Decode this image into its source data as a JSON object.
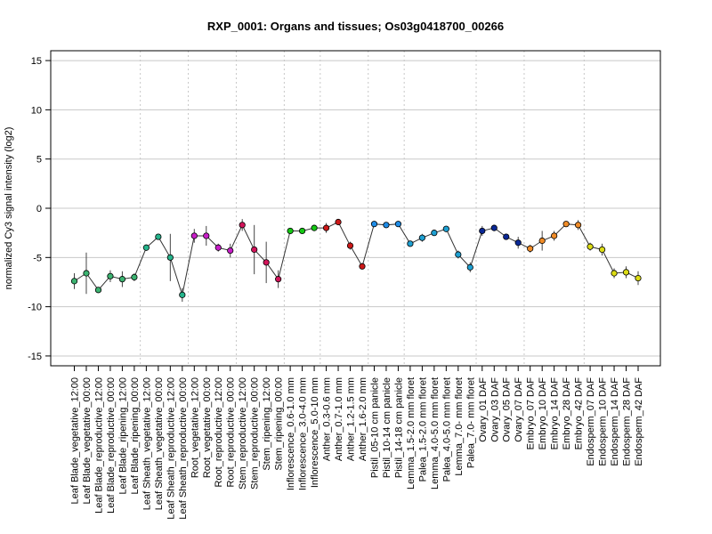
{
  "chart_data": {
    "type": "line",
    "title": "RXP_0001: Organs and tissues; Os03g0418700_00266",
    "xlabel": "",
    "ylabel": "normalized Cy3 signal intensity (log2)",
    "ylim": [
      -16,
      16
    ],
    "yticks": [
      -15,
      -10,
      -5,
      0,
      5,
      10,
      15
    ],
    "grid": true,
    "categories": [
      "Leaf Blade_vegetative_12:00",
      "Leaf Blade_vegetative_00:00",
      "Leaf Blade_reproductive_12:00",
      "Leaf Blade_reproductive_00:00",
      "Leaf Blade_ripening_12:00",
      "Leaf Blade_ripening_00:00",
      "Leaf Sheath_vegetative_12:00",
      "Leaf Sheath_vegetative_00:00",
      "Leaf Sheath_reproductive_12:00",
      "Leaf Sheath_reproductive_00:00",
      "Root_vegetative_12:00",
      "Root_vegetative_00:00",
      "Root_reproductive_12:00",
      "Root_reproductive_00:00",
      "Stem_reproductive_12:00",
      "Stem_reproductive_00:00",
      "Stem_ripening_12:00",
      "Stem_ripening_00:00",
      "Inflorescence_0.6-1.0 mm",
      "Inflorescence_3.0-4.0 mm",
      "Inflorescence_5.0-10 mm",
      "Anther_0.3-0.6 mm",
      "Anther_0.7-1.0 mm",
      "Anther_1.2-1.5 mm",
      "Anther_1.6-2.0 mm",
      "Pistil_05-10 cm panicle",
      "Pistil_10-14 cm panicle",
      "Pistil_14-18 cm panicle",
      "Lemma_1.5-2.0 mm floret",
      "Palea_1.5-2.0 mm floret",
      "Lemma_4.0-5.0 mm floret",
      "Palea_4.0-5.0 mm floret",
      "Lemma_7.0- mm floret",
      "Palea_7.0- mm floret",
      "Ovary_01 DAF",
      "Ovary_03 DAF",
      "Ovary_05 DAF",
      "Ovary_07 DAF",
      "Embryo_07 DAF",
      "Embryo_10 DAF",
      "Embryo_14 DAF",
      "Embryo_28 DAF",
      "Embryo_42 DAF",
      "Endosperm_07 DAF",
      "Endosperm_10 DAF",
      "Endosperm_14 DAF",
      "Endosperm_28 DAF",
      "Endosperm_42 DAF"
    ],
    "values": [
      -7.4,
      -6.6,
      -8.3,
      -6.9,
      -7.2,
      -7.0,
      -4.0,
      -2.9,
      -5.0,
      -8.8,
      -2.8,
      -2.8,
      -4.0,
      -4.3,
      -1.7,
      -4.2,
      -5.5,
      -7.2,
      -2.3,
      -2.3,
      -2.0,
      -2.0,
      -1.4,
      -3.8,
      -5.9,
      -1.6,
      -1.7,
      -1.6,
      -3.6,
      -3.0,
      -2.5,
      -2.1,
      -4.7,
      -6.0,
      -2.3,
      -2.0,
      -2.9,
      -3.5,
      -4.1,
      -3.3,
      -2.8,
      -1.6,
      -1.7,
      -3.9,
      -4.2,
      -6.6,
      -6.5,
      -7.1
    ],
    "errors": [
      0.8,
      2.1,
      0.3,
      0.6,
      0.8,
      0.4,
      0.3,
      0.2,
      2.4,
      0.7,
      0.7,
      1.0,
      0.4,
      0.7,
      0.6,
      2.5,
      2.1,
      0.9,
      0.3,
      0.2,
      0.2,
      0.5,
      0.3,
      0.4,
      0.3,
      0.3,
      0.3,
      0.3,
      0.3,
      0.4,
      0.3,
      0.3,
      0.4,
      0.5,
      0.5,
      0.3,
      0.3,
      0.6,
      0.4,
      1.0,
      0.5,
      0.2,
      0.5,
      0.4,
      0.6,
      0.5,
      0.6,
      0.7
    ],
    "colors": [
      "#3cb371",
      "#3cb371",
      "#3cb371",
      "#3cb371",
      "#3cb371",
      "#3cb371",
      "#26b48c",
      "#26b48c",
      "#26b48c",
      "#26b48c",
      "#c81ec8",
      "#c81ec8",
      "#c81ec8",
      "#c81ec8",
      "#d2145a",
      "#d2145a",
      "#d2145a",
      "#d2145a",
      "#14c814",
      "#14c814",
      "#14c814",
      "#cc1818",
      "#cc1818",
      "#cc1818",
      "#cc1818",
      "#1e8ce6",
      "#1e8ce6",
      "#1e8ce6",
      "#1ea0d2",
      "#1ea0d2",
      "#1ea0d2",
      "#1ea0d2",
      "#1ea0d2",
      "#1ea0d2",
      "#0a2896",
      "#0a2896",
      "#0a2896",
      "#0a2896",
      "#f08c28",
      "#f08c28",
      "#f08c28",
      "#f08c28",
      "#f08c28",
      "#dcdc14",
      "#dcdc14",
      "#dcdc14",
      "#dcdc14",
      "#dcdc14"
    ],
    "vertical_separators_after": [
      5,
      9,
      13,
      17,
      20,
      24,
      27,
      33,
      37,
      42
    ]
  }
}
